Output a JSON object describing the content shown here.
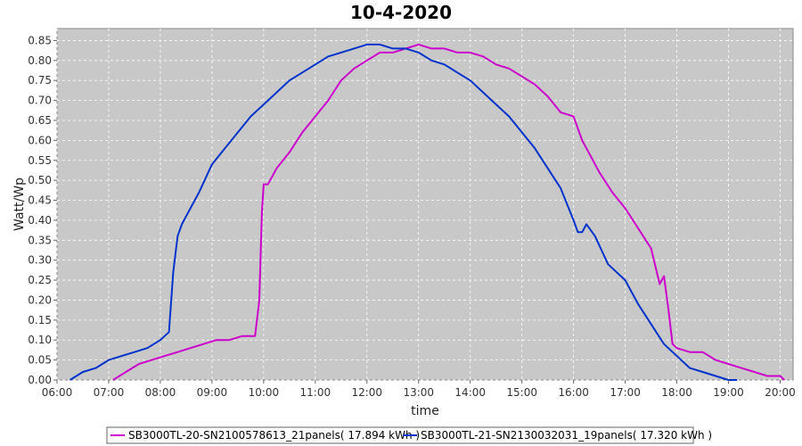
{
  "chart_data": {
    "type": "line",
    "title": "10-4-2020",
    "xlabel": "time",
    "ylabel": "Watt/Wp",
    "xlim": [
      "06:00",
      "20:15"
    ],
    "ylim": [
      0,
      0.88
    ],
    "x_ticks": [
      "06:00",
      "07:00",
      "08:00",
      "09:00",
      "10:00",
      "11:00",
      "12:00",
      "13:00",
      "14:00",
      "15:00",
      "16:00",
      "17:00",
      "18:00",
      "19:00",
      "20:00"
    ],
    "y_ticks": [
      "0.00",
      "0.05",
      "0.10",
      "0.15",
      "0.20",
      "0.25",
      "0.30",
      "0.35",
      "0.40",
      "0.45",
      "0.50",
      "0.55",
      "0.60",
      "0.65",
      "0.70",
      "0.75",
      "0.80",
      "0.85"
    ],
    "grid": true,
    "legend_position": "bottom",
    "series": [
      {
        "name": "SB3000TL-20-SN2100578613_21panels( 17.894 kWh )",
        "color": "#cc00cc",
        "x": [
          "07:05",
          "07:20",
          "07:35",
          "07:50",
          "08:05",
          "08:20",
          "08:35",
          "08:50",
          "09:05",
          "09:20",
          "09:35",
          "09:50",
          "09:55",
          "09:58",
          "10:00",
          "10:05",
          "10:15",
          "10:30",
          "10:45",
          "11:00",
          "11:15",
          "11:30",
          "11:45",
          "12:00",
          "12:15",
          "12:30",
          "12:45",
          "13:00",
          "13:15",
          "13:30",
          "13:45",
          "14:00",
          "14:15",
          "14:30",
          "14:45",
          "15:00",
          "15:15",
          "15:30",
          "15:45",
          "16:00",
          "16:10",
          "16:20",
          "16:30",
          "16:45",
          "17:00",
          "17:15",
          "17:30",
          "17:40",
          "17:45",
          "17:50",
          "17:55",
          "18:00",
          "18:15",
          "18:30",
          "18:45",
          "19:00",
          "19:15",
          "19:30",
          "19:45",
          "20:00",
          "20:05"
        ],
        "values": [
          0.0,
          0.02,
          0.04,
          0.05,
          0.06,
          0.07,
          0.08,
          0.09,
          0.1,
          0.1,
          0.11,
          0.11,
          0.2,
          0.42,
          0.49,
          0.49,
          0.53,
          0.57,
          0.62,
          0.66,
          0.7,
          0.75,
          0.78,
          0.8,
          0.82,
          0.82,
          0.83,
          0.84,
          0.83,
          0.83,
          0.82,
          0.82,
          0.81,
          0.79,
          0.78,
          0.76,
          0.74,
          0.71,
          0.67,
          0.66,
          0.6,
          0.56,
          0.52,
          0.47,
          0.43,
          0.38,
          0.33,
          0.24,
          0.26,
          0.18,
          0.09,
          0.08,
          0.07,
          0.07,
          0.05,
          0.04,
          0.03,
          0.02,
          0.01,
          0.01,
          0.0
        ]
      },
      {
        "name": "SB3000TL-21-SN2130032031_19panels( 17.320 kWh )",
        "color": "#0033cc",
        "x": [
          "06:15",
          "06:30",
          "06:45",
          "07:00",
          "07:15",
          "07:30",
          "07:45",
          "08:00",
          "08:10",
          "08:15",
          "08:20",
          "08:25",
          "08:35",
          "08:45",
          "09:00",
          "09:15",
          "09:30",
          "09:45",
          "10:00",
          "10:15",
          "10:30",
          "10:45",
          "11:00",
          "11:15",
          "11:30",
          "11:45",
          "12:00",
          "12:15",
          "12:30",
          "12:45",
          "13:00",
          "13:15",
          "13:30",
          "13:45",
          "14:00",
          "14:15",
          "14:30",
          "14:45",
          "15:00",
          "15:15",
          "15:30",
          "15:45",
          "16:00",
          "16:05",
          "16:10",
          "16:15",
          "16:25",
          "16:40",
          "17:00",
          "17:15",
          "17:30",
          "17:45",
          "18:00",
          "18:15",
          "18:30",
          "18:45",
          "19:00",
          "19:10"
        ],
        "values": [
          0.0,
          0.02,
          0.03,
          0.05,
          0.06,
          0.07,
          0.08,
          0.1,
          0.12,
          0.27,
          0.36,
          0.39,
          0.43,
          0.47,
          0.54,
          0.58,
          0.62,
          0.66,
          0.69,
          0.72,
          0.75,
          0.77,
          0.79,
          0.81,
          0.82,
          0.83,
          0.84,
          0.84,
          0.83,
          0.83,
          0.82,
          0.8,
          0.79,
          0.77,
          0.75,
          0.72,
          0.69,
          0.66,
          0.62,
          0.58,
          0.53,
          0.48,
          0.4,
          0.37,
          0.37,
          0.39,
          0.36,
          0.29,
          0.25,
          0.19,
          0.14,
          0.09,
          0.06,
          0.03,
          0.02,
          0.01,
          0.0,
          0.0
        ]
      }
    ]
  }
}
